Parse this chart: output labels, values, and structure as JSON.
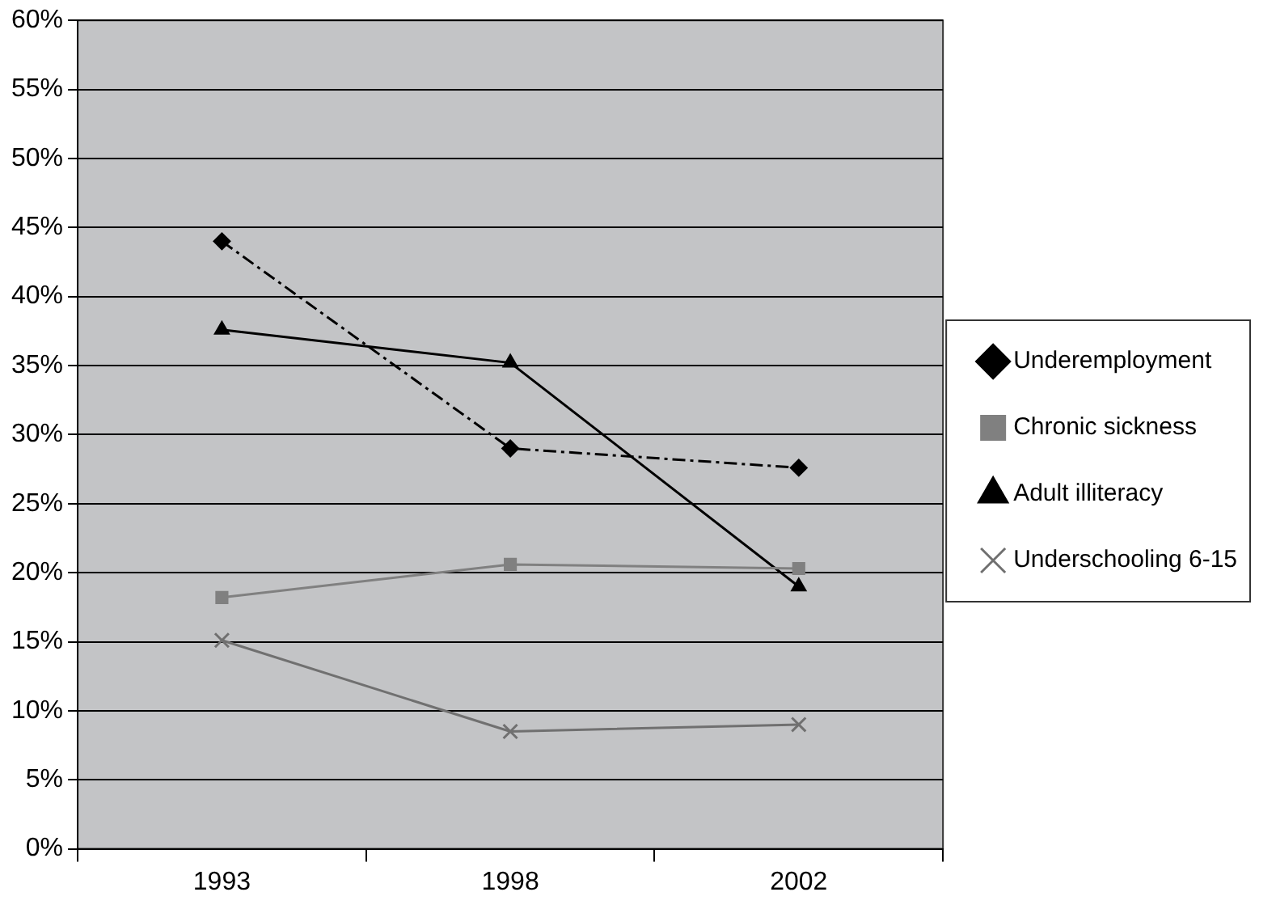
{
  "chart_data": {
    "type": "line",
    "categories": [
      "1993",
      "1998",
      "2002"
    ],
    "series": [
      {
        "name": "Underemployment",
        "color": "#000000",
        "values": [
          44,
          29,
          27.6
        ],
        "marker": "diamond",
        "line_style": "dashed"
      },
      {
        "name": "Chronic sickness",
        "color": "#808080",
        "values": [
          18.2,
          20.6,
          20.3
        ],
        "marker": "square",
        "line_style": "solid"
      },
      {
        "name": "Adult illiteracy",
        "color": "#000000",
        "values": [
          37.6,
          35.2,
          19
        ],
        "marker": "triangle",
        "line_style": "solid"
      },
      {
        "name": "Underschooling 6-15",
        "color": "#707070",
        "values": [
          15.1,
          8.5,
          9
        ],
        "marker": "cross",
        "line_style": "solid"
      }
    ],
    "ylim": [
      0,
      60
    ],
    "yticks": [
      {
        "value": 0,
        "label": "0%"
      },
      {
        "value": 5,
        "label": "5%"
      },
      {
        "value": 10,
        "label": "10%"
      },
      {
        "value": 15,
        "label": "15%"
      },
      {
        "value": 20,
        "label": "20%"
      },
      {
        "value": 25,
        "label": "25%"
      },
      {
        "value": 30,
        "label": "30%"
      },
      {
        "value": 35,
        "label": "35%"
      },
      {
        "value": 40,
        "label": "40%"
      },
      {
        "value": 45,
        "label": "45%"
      },
      {
        "value": 50,
        "label": "50%"
      },
      {
        "value": 55,
        "label": "55%"
      },
      {
        "value": 60,
        "label": "60%"
      }
    ],
    "grid": "y",
    "legend": "right"
  }
}
